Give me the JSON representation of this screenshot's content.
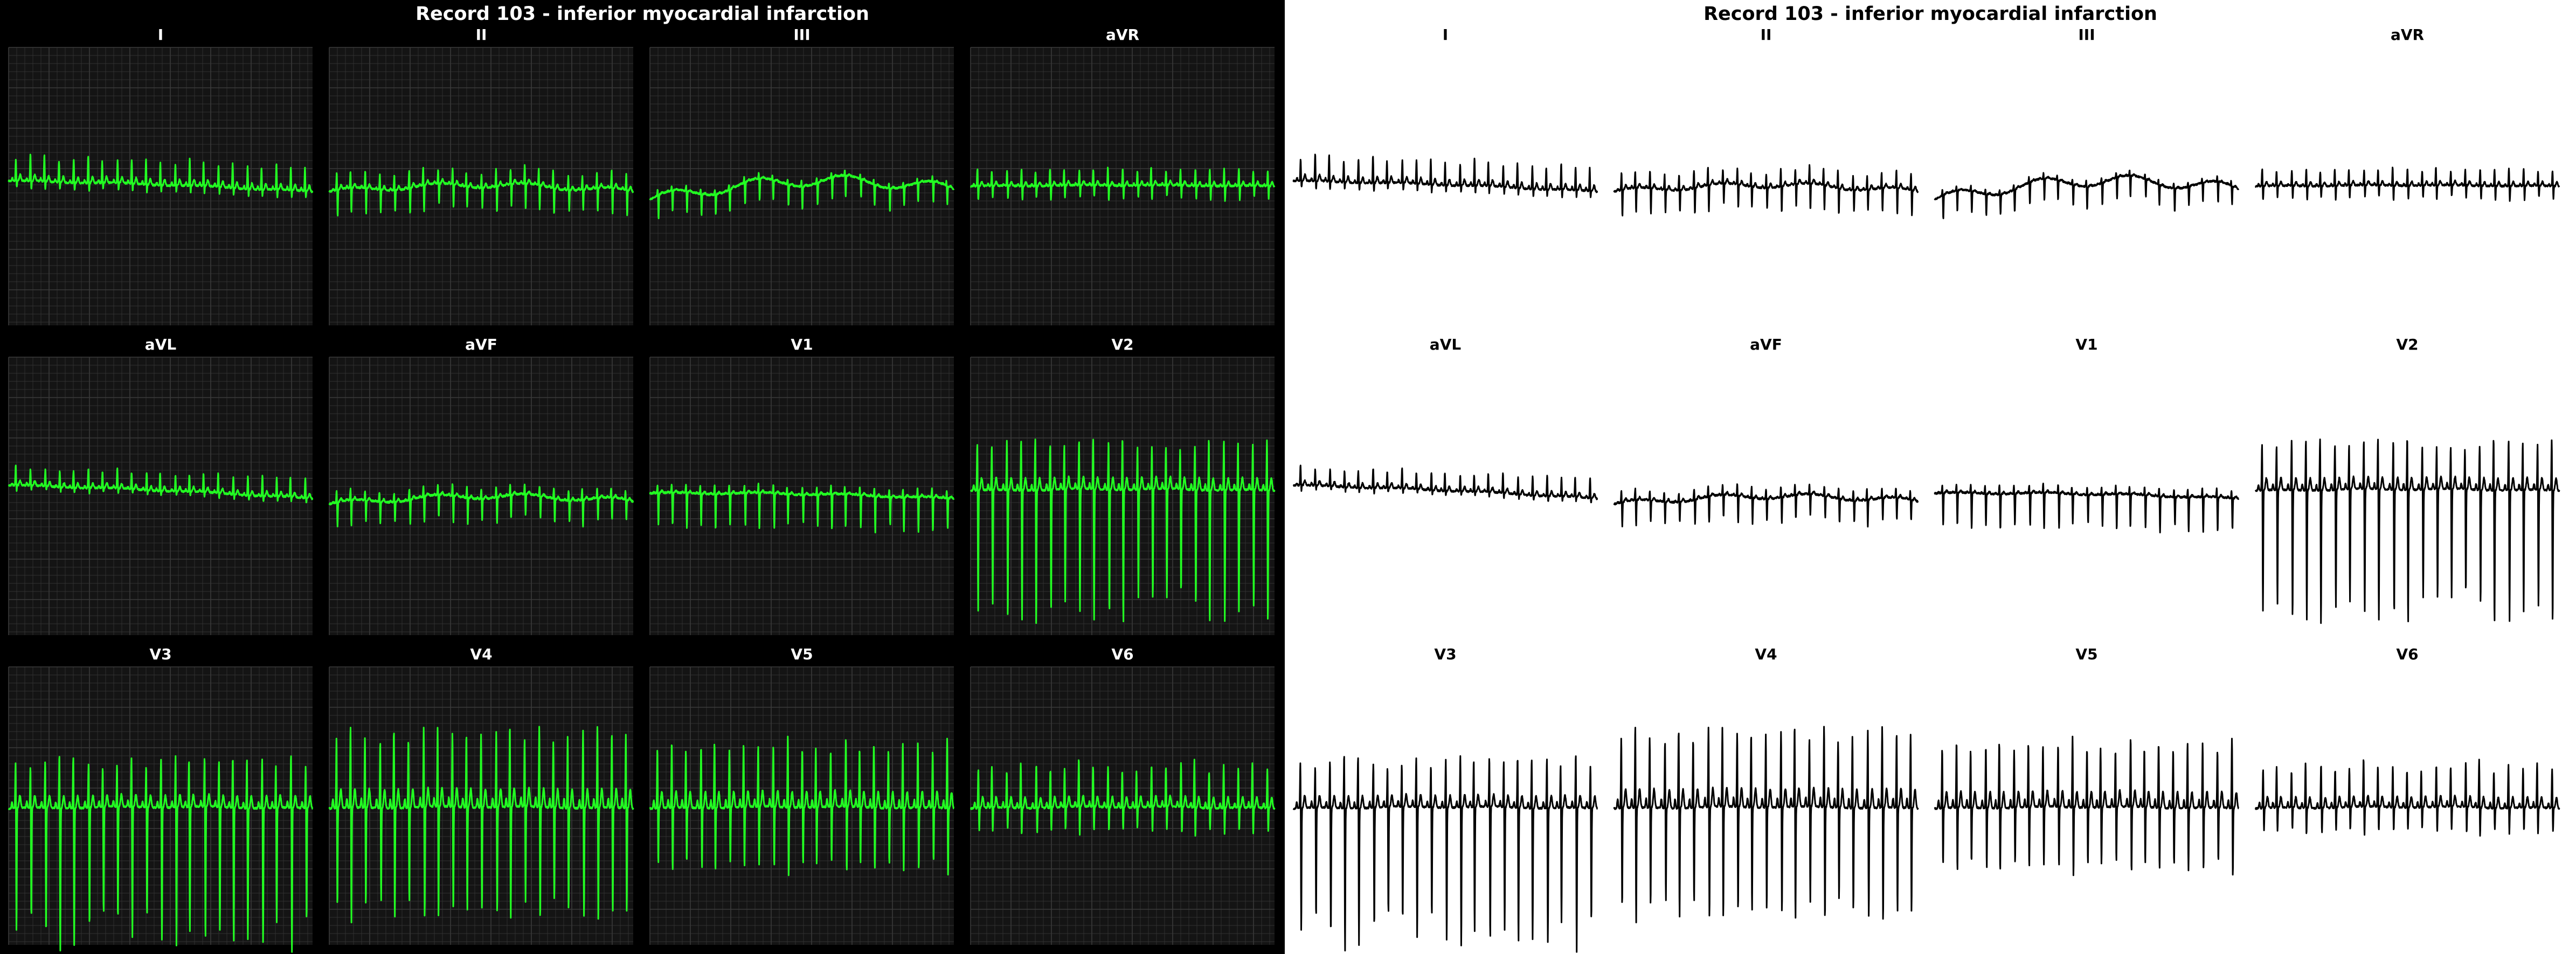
{
  "title": "Record 103 - inferior myocardial infarction",
  "colors": {
    "dark_bg": "#000000",
    "grid_bg": "#141414",
    "grid_line": "#3a3a3a",
    "dark_trace": "#22ff22",
    "light_bg": "#ffffff",
    "light_trace": "#000000"
  },
  "chart_data": {
    "type": "line",
    "grid": true,
    "leads": [
      {
        "name": "I",
        "beats": 21,
        "peak": 0.45,
        "trough": -0.15,
        "baseline_start": 0.1,
        "baseline_end": -0.1,
        "wander": 0.03
      },
      {
        "name": "II",
        "beats": 21,
        "peak": 0.3,
        "trough": -0.45,
        "baseline_start": -0.1,
        "baseline_end": -0.1,
        "wander": 0.12
      },
      {
        "name": "III",
        "beats": 21,
        "peak": 0.1,
        "trough": -0.4,
        "baseline_start": -0.25,
        "baseline_end": -0.05,
        "wander": 0.25
      },
      {
        "name": "aVR",
        "beats": 21,
        "peak": 0.3,
        "trough": -0.25,
        "baseline_start": 0.0,
        "baseline_end": 0.0,
        "wander": 0.02
      },
      {
        "name": "aVL",
        "beats": 21,
        "peak": 0.35,
        "trough": -0.1,
        "baseline_start": 0.2,
        "baseline_end": -0.05,
        "wander": 0.03
      },
      {
        "name": "aVF",
        "beats": 21,
        "peak": 0.2,
        "trough": -0.45,
        "baseline_start": -0.15,
        "baseline_end": -0.1,
        "wander": 0.12
      },
      {
        "name": "V1",
        "beats": 21,
        "peak": 0.15,
        "trough": -0.6,
        "baseline_start": 0.05,
        "baseline_end": -0.05,
        "wander": 0.04
      },
      {
        "name": "V2",
        "beats": 21,
        "peak": 0.9,
        "trough": -2.3,
        "baseline_start": 0.1,
        "baseline_end": 0.1,
        "wander": 0.03
      },
      {
        "name": "V3",
        "beats": 21,
        "peak": 0.9,
        "trough": -2.4,
        "baseline_start": -0.05,
        "baseline_end": -0.05,
        "wander": 0.03
      },
      {
        "name": "V4",
        "beats": 21,
        "peak": 1.4,
        "trough": -2.0,
        "baseline_start": -0.05,
        "baseline_end": -0.05,
        "wander": 0.03
      },
      {
        "name": "V5",
        "beats": 21,
        "peak": 1.2,
        "trough": -1.2,
        "baseline_start": -0.05,
        "baseline_end": -0.05,
        "wander": 0.03
      },
      {
        "name": "V6",
        "beats": 21,
        "peak": 0.8,
        "trough": -0.5,
        "baseline_start": -0.05,
        "baseline_end": -0.05,
        "wander": 0.03
      }
    ],
    "ylim": [
      -2.6,
      2.6
    ]
  }
}
